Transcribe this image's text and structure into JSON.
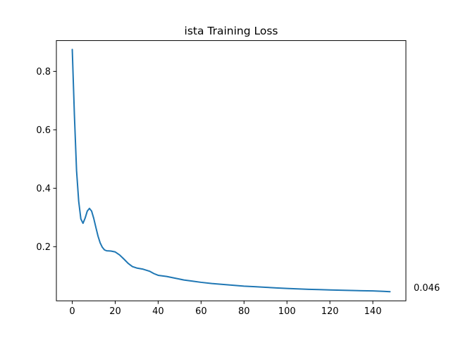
{
  "chart_data": {
    "type": "line",
    "title": "ista Training Loss",
    "xlabel": "",
    "ylabel": "",
    "xlim": [
      -7.4,
      155.4
    ],
    "ylim": [
      0.0147,
      0.9055
    ],
    "xticks": [
      0,
      20,
      40,
      60,
      80,
      100,
      120,
      140
    ],
    "yticks": [
      0.2,
      0.4,
      0.6,
      0.8
    ],
    "grid": false,
    "legend": "none",
    "series": [
      {
        "color": "#1f77b4",
        "points": [
          [
            0,
            0.875
          ],
          [
            1,
            0.65
          ],
          [
            2,
            0.46
          ],
          [
            3,
            0.355
          ],
          [
            4,
            0.295
          ],
          [
            5,
            0.28
          ],
          [
            6,
            0.298
          ],
          [
            7,
            0.322
          ],
          [
            8,
            0.331
          ],
          [
            9,
            0.322
          ],
          [
            10,
            0.297
          ],
          [
            11,
            0.266
          ],
          [
            12,
            0.236
          ],
          [
            13,
            0.213
          ],
          [
            14,
            0.198
          ],
          [
            15,
            0.189
          ],
          [
            16,
            0.186
          ],
          [
            18,
            0.185
          ],
          [
            20,
            0.182
          ],
          [
            22,
            0.172
          ],
          [
            24,
            0.158
          ],
          [
            26,
            0.143
          ],
          [
            28,
            0.132
          ],
          [
            30,
            0.127
          ],
          [
            33,
            0.123
          ],
          [
            36,
            0.116
          ],
          [
            38,
            0.108
          ],
          [
            40,
            0.102
          ],
          [
            44,
            0.098
          ],
          [
            48,
            0.092
          ],
          [
            52,
            0.086
          ],
          [
            56,
            0.082
          ],
          [
            60,
            0.078
          ],
          [
            65,
            0.074
          ],
          [
            70,
            0.071
          ],
          [
            75,
            0.068
          ],
          [
            80,
            0.065
          ],
          [
            85,
            0.063
          ],
          [
            90,
            0.061
          ],
          [
            95,
            0.059
          ],
          [
            100,
            0.057
          ],
          [
            105,
            0.0555
          ],
          [
            110,
            0.054
          ],
          [
            115,
            0.053
          ],
          [
            120,
            0.052
          ],
          [
            125,
            0.051
          ],
          [
            130,
            0.05
          ],
          [
            135,
            0.0493
          ],
          [
            140,
            0.0485
          ],
          [
            145,
            0.0472
          ],
          [
            148,
            0.046
          ]
        ]
      }
    ],
    "annotations": [
      {
        "text": "0.046",
        "x": 148,
        "y": 0.046
      }
    ]
  }
}
